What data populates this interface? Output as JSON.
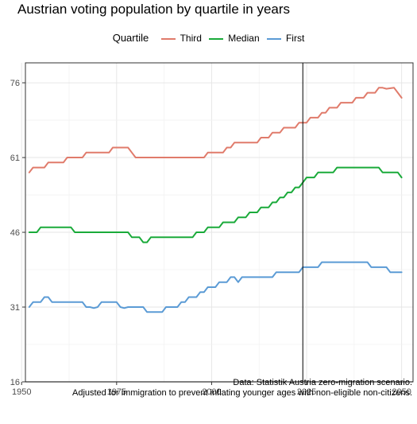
{
  "chart_data": {
    "type": "line",
    "title": "Austrian voting population by quartile in years",
    "xlabel": "",
    "ylabel": "",
    "xlim": [
      1951,
      2053
    ],
    "ylim": [
      16,
      80
    ],
    "x_ticks": [
      1950,
      1975,
      2000,
      2025,
      2050
    ],
    "y_ticks": [
      16,
      31,
      46,
      61,
      76
    ],
    "grid": true,
    "legend": {
      "title": "Quartile",
      "position": "top"
    },
    "vertical_line_x": 2024,
    "series": [
      {
        "name": "Third",
        "color": "#E07B6B",
        "points": [
          [
            1952,
            58
          ],
          [
            1953,
            59
          ],
          [
            1956,
            59
          ],
          [
            1957,
            60
          ],
          [
            1961,
            60
          ],
          [
            1962,
            61
          ],
          [
            1966,
            61
          ],
          [
            1967,
            62
          ],
          [
            1973,
            62
          ],
          [
            1974,
            63
          ],
          [
            1978,
            63
          ],
          [
            1979,
            62
          ],
          [
            1980,
            61
          ],
          [
            1998,
            61
          ],
          [
            1999,
            62
          ],
          [
            2003,
            62
          ],
          [
            2004,
            63
          ],
          [
            2005,
            63
          ],
          [
            2006,
            64
          ],
          [
            2012,
            64
          ],
          [
            2013,
            65
          ],
          [
            2015,
            65
          ],
          [
            2016,
            66
          ],
          [
            2018,
            66
          ],
          [
            2019,
            67
          ],
          [
            2022,
            67
          ],
          [
            2023,
            68
          ],
          [
            2025,
            68
          ],
          [
            2026,
            69
          ],
          [
            2028,
            69
          ],
          [
            2029,
            70
          ],
          [
            2030,
            70
          ],
          [
            2031,
            71
          ],
          [
            2033,
            71
          ],
          [
            2034,
            72
          ],
          [
            2037,
            72
          ],
          [
            2038,
            73
          ],
          [
            2040,
            73
          ],
          [
            2041,
            74
          ],
          [
            2043,
            74
          ],
          [
            2044,
            75
          ],
          [
            2045,
            75
          ],
          [
            2046,
            74.8
          ],
          [
            2048,
            75
          ],
          [
            2049,
            74
          ],
          [
            2050,
            73
          ]
        ]
      },
      {
        "name": "Median",
        "color": "#1AAA3A",
        "points": [
          [
            1952,
            46
          ],
          [
            1954,
            46
          ],
          [
            1955,
            47
          ],
          [
            1963,
            47
          ],
          [
            1964,
            46
          ],
          [
            1978,
            46
          ],
          [
            1979,
            45
          ],
          [
            1981,
            45
          ],
          [
            1982,
            44
          ],
          [
            1983,
            44
          ],
          [
            1984,
            45
          ],
          [
            1995,
            45
          ],
          [
            1996,
            46
          ],
          [
            1998,
            46
          ],
          [
            1999,
            47
          ],
          [
            2002,
            47
          ],
          [
            2003,
            48
          ],
          [
            2006,
            48
          ],
          [
            2007,
            49
          ],
          [
            2009,
            49
          ],
          [
            2010,
            50
          ],
          [
            2012,
            50
          ],
          [
            2013,
            51
          ],
          [
            2015,
            51
          ],
          [
            2016,
            52
          ],
          [
            2017,
            52
          ],
          [
            2018,
            53
          ],
          [
            2019,
            53
          ],
          [
            2020,
            54
          ],
          [
            2021,
            54
          ],
          [
            2022,
            55
          ],
          [
            2023,
            55
          ],
          [
            2024,
            56
          ],
          [
            2025,
            57
          ],
          [
            2027,
            57
          ],
          [
            2028,
            58
          ],
          [
            2032,
            58
          ],
          [
            2033,
            59
          ],
          [
            2044,
            59
          ],
          [
            2045,
            58
          ],
          [
            2049,
            58
          ],
          [
            2050,
            57
          ]
        ]
      },
      {
        "name": "First",
        "color": "#5B9BD5",
        "points": [
          [
            1952,
            31
          ],
          [
            1953,
            32
          ],
          [
            1955,
            32
          ],
          [
            1956,
            33
          ],
          [
            1957,
            33
          ],
          [
            1958,
            32
          ],
          [
            1966,
            32
          ],
          [
            1967,
            31
          ],
          [
            1968,
            31
          ],
          [
            1969,
            30.8
          ],
          [
            1970,
            31
          ],
          [
            1971,
            32
          ],
          [
            1975,
            32
          ],
          [
            1976,
            31
          ],
          [
            1977,
            30.8
          ],
          [
            1978,
            31
          ],
          [
            1982,
            31
          ],
          [
            1983,
            30
          ],
          [
            1987,
            30
          ],
          [
            1988,
            31
          ],
          [
            1991,
            31
          ],
          [
            1992,
            32
          ],
          [
            1993,
            32
          ],
          [
            1994,
            33
          ],
          [
            1996,
            33
          ],
          [
            1997,
            34
          ],
          [
            1998,
            34
          ],
          [
            1999,
            35
          ],
          [
            2001,
            35
          ],
          [
            2002,
            36
          ],
          [
            2004,
            36
          ],
          [
            2005,
            37
          ],
          [
            2006,
            37
          ],
          [
            2007,
            36
          ],
          [
            2008,
            37
          ],
          [
            2016,
            37
          ],
          [
            2017,
            38
          ],
          [
            2023,
            38
          ],
          [
            2024,
            39
          ],
          [
            2028,
            39
          ],
          [
            2029,
            40
          ],
          [
            2041,
            40
          ],
          [
            2042,
            39
          ],
          [
            2046,
            39
          ],
          [
            2047,
            38
          ],
          [
            2050,
            38
          ]
        ]
      }
    ]
  },
  "captions": {
    "line1": "Data: Statistik Austria zero-migration scenario.",
    "line2": "Adjusted for immigration to prevent inflating younger ages with non-eligible non-citizens."
  }
}
